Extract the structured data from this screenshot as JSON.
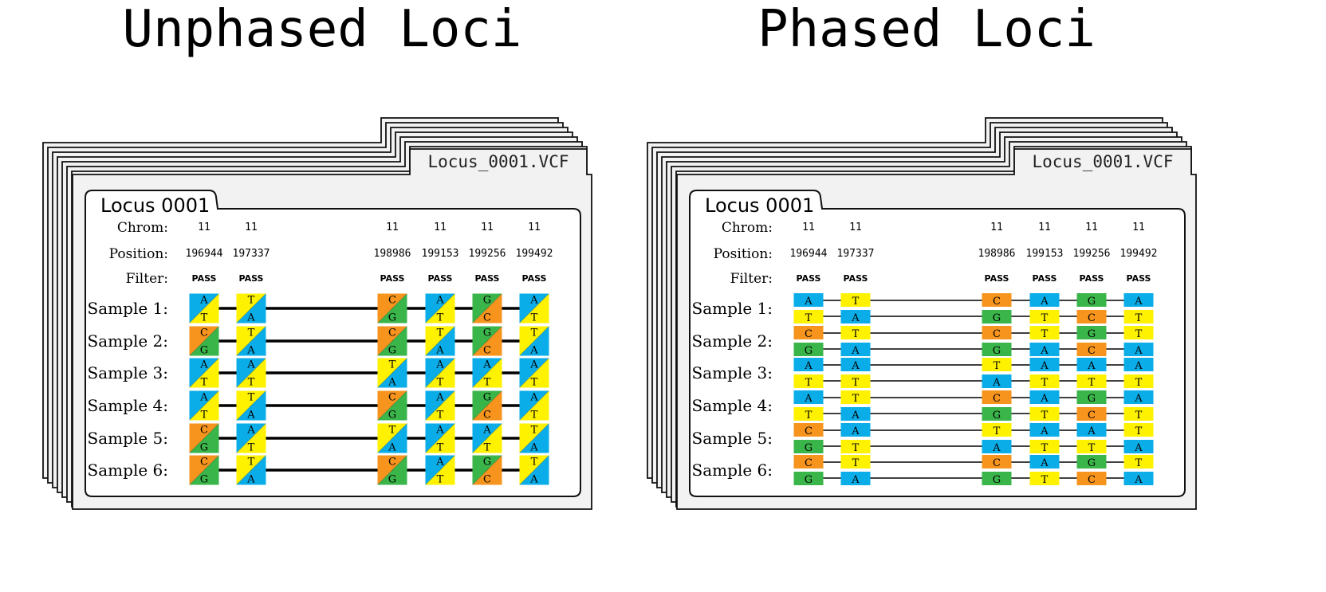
{
  "colors": {
    "A": "#0AADE8",
    "T": "#FFF200",
    "C": "#F7941D",
    "G": "#3AB54A",
    "folder_fill": "#F2F2F2",
    "outline": "#111111"
  },
  "row_labels": {
    "chrom": "Chrom:",
    "position": "Position:",
    "filter": "Filter:"
  },
  "sample_labels": [
    "Sample 1:",
    "Sample 2:",
    "Sample 3:",
    "Sample 4:",
    "Sample 5:",
    "Sample 6:"
  ],
  "loci": [
    {
      "chrom": "11",
      "position": "196944",
      "filter": "PASS"
    },
    {
      "chrom": "11",
      "position": "197337",
      "filter": "PASS"
    },
    {
      "chrom": "11",
      "position": "198986",
      "filter": "PASS"
    },
    {
      "chrom": "11",
      "position": "199153",
      "filter": "PASS"
    },
    {
      "chrom": "11",
      "position": "199256",
      "filter": "PASS"
    },
    {
      "chrom": "11",
      "position": "199492",
      "filter": "PASS"
    }
  ],
  "genotypes": [
    [
      "AT",
      "TA",
      "CG",
      "AT",
      "GC",
      "AT"
    ],
    [
      "CG",
      "TA",
      "CG",
      "TA",
      "GC",
      "TA"
    ],
    [
      "AT",
      "AT",
      "TA",
      "AT",
      "AT",
      "AT"
    ],
    [
      "AT",
      "TA",
      "CG",
      "AT",
      "GC",
      "AT"
    ],
    [
      "CG",
      "AT",
      "TA",
      "AT",
      "AT",
      "TA"
    ],
    [
      "CG",
      "TA",
      "CG",
      "AT",
      "GC",
      "TA"
    ]
  ],
  "panels": [
    {
      "id": "unphased",
      "title": "Unphased Loci",
      "file_label": "Locus_0001.VCF",
      "locus_tab": "Locus 0001",
      "phased": false
    },
    {
      "id": "phased",
      "title": "Phased Loci",
      "file_label": "Locus_0001.VCF",
      "locus_tab": "Locus 0001",
      "phased": true
    }
  ]
}
